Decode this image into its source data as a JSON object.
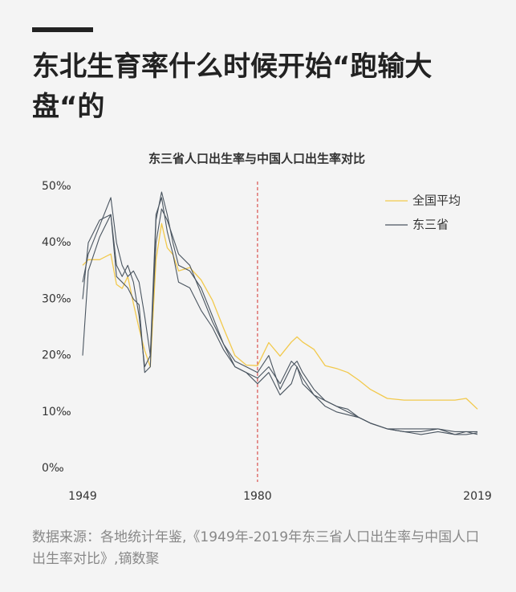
{
  "title": "东北生育率什么时候开始“跑输大盘“的",
  "source": "数据来源：各地统计年鉴,《1949年-2019年东三省人口出生率与中国人口出生率对比》,镝数聚",
  "chart_data": {
    "type": "line",
    "title": "东三省人口出生率与中国人口出生率对比",
    "x": [
      1949,
      1950,
      1952,
      1954,
      1955,
      1956,
      1957,
      1958,
      1959,
      1960,
      1961,
      1962,
      1963,
      1964,
      1965,
      1966,
      1968,
      1970,
      1972,
      1974,
      1976,
      1978,
      1980,
      1982,
      1984,
      1986,
      1987,
      1988,
      1990,
      1992,
      1994,
      1996,
      1998,
      2000,
      2003,
      2006,
      2009,
      2012,
      2015,
      2017,
      2019
    ],
    "series": [
      {
        "name": "全国平均",
        "color": "#f2c94c",
        "values": [
          36,
          37,
          37,
          38,
          32.6,
          31.9,
          34,
          29.2,
          24.8,
          20.9,
          18,
          37,
          43.4,
          39.1,
          37.9,
          35,
          35.6,
          33.4,
          29.8,
          24.8,
          20,
          18.3,
          18.2,
          22.3,
          19.9,
          22.4,
          23.3,
          22.4,
          21.1,
          18.2,
          17.7,
          17,
          15.6,
          14,
          12.4,
          12.1,
          12.1,
          12.1,
          12.1,
          12.4,
          10.5
        ]
      },
      {
        "name": "东三省",
        "color": "#4a5560",
        "lines": [
          [
            20,
            35,
            41,
            45,
            34,
            33,
            32,
            30,
            29,
            17,
            18,
            44,
            49,
            45,
            40,
            36,
            35,
            32,
            27,
            22,
            18,
            17,
            16,
            18,
            15,
            19,
            18,
            16,
            13,
            12,
            11,
            10,
            9,
            8,
            7,
            6.5,
            6,
            6.5,
            6,
            6.5,
            6
          ],
          [
            33,
            38,
            43,
            48,
            40,
            36,
            34,
            35,
            33,
            27,
            20,
            40,
            46,
            44,
            41,
            38,
            36,
            31,
            26,
            22,
            19,
            18,
            17,
            20,
            14,
            18,
            19,
            17,
            14,
            12,
            11,
            10.5,
            9,
            8,
            7,
            7,
            7,
            7,
            6.5,
            6.5,
            6.5
          ],
          [
            30,
            40,
            44,
            45,
            36,
            34,
            36,
            33,
            27,
            18,
            20,
            45,
            48,
            42,
            38,
            33,
            32,
            28,
            25,
            21,
            18,
            17,
            15,
            17,
            13,
            15,
            18,
            15,
            13,
            11,
            10,
            9.5,
            9,
            8,
            7,
            6.5,
            6.5,
            7,
            6,
            6,
            6.3
          ]
        ]
      }
    ],
    "xlim": [
      1949,
      2019
    ],
    "xticks": [
      1949,
      1980,
      2019
    ],
    "ylim": [
      0,
      50
    ],
    "yticks": [
      {
        "value": 0,
        "label": "0‰"
      },
      {
        "value": 10,
        "label": "10‰"
      },
      {
        "value": 20,
        "label": "20‰"
      },
      {
        "value": 30,
        "label": "30‰"
      },
      {
        "value": 40,
        "label": "40‰"
      },
      {
        "value": 50,
        "label": "50‰"
      }
    ],
    "vline": 1980,
    "vline_color": "#d9534f",
    "legend": "top-right"
  }
}
